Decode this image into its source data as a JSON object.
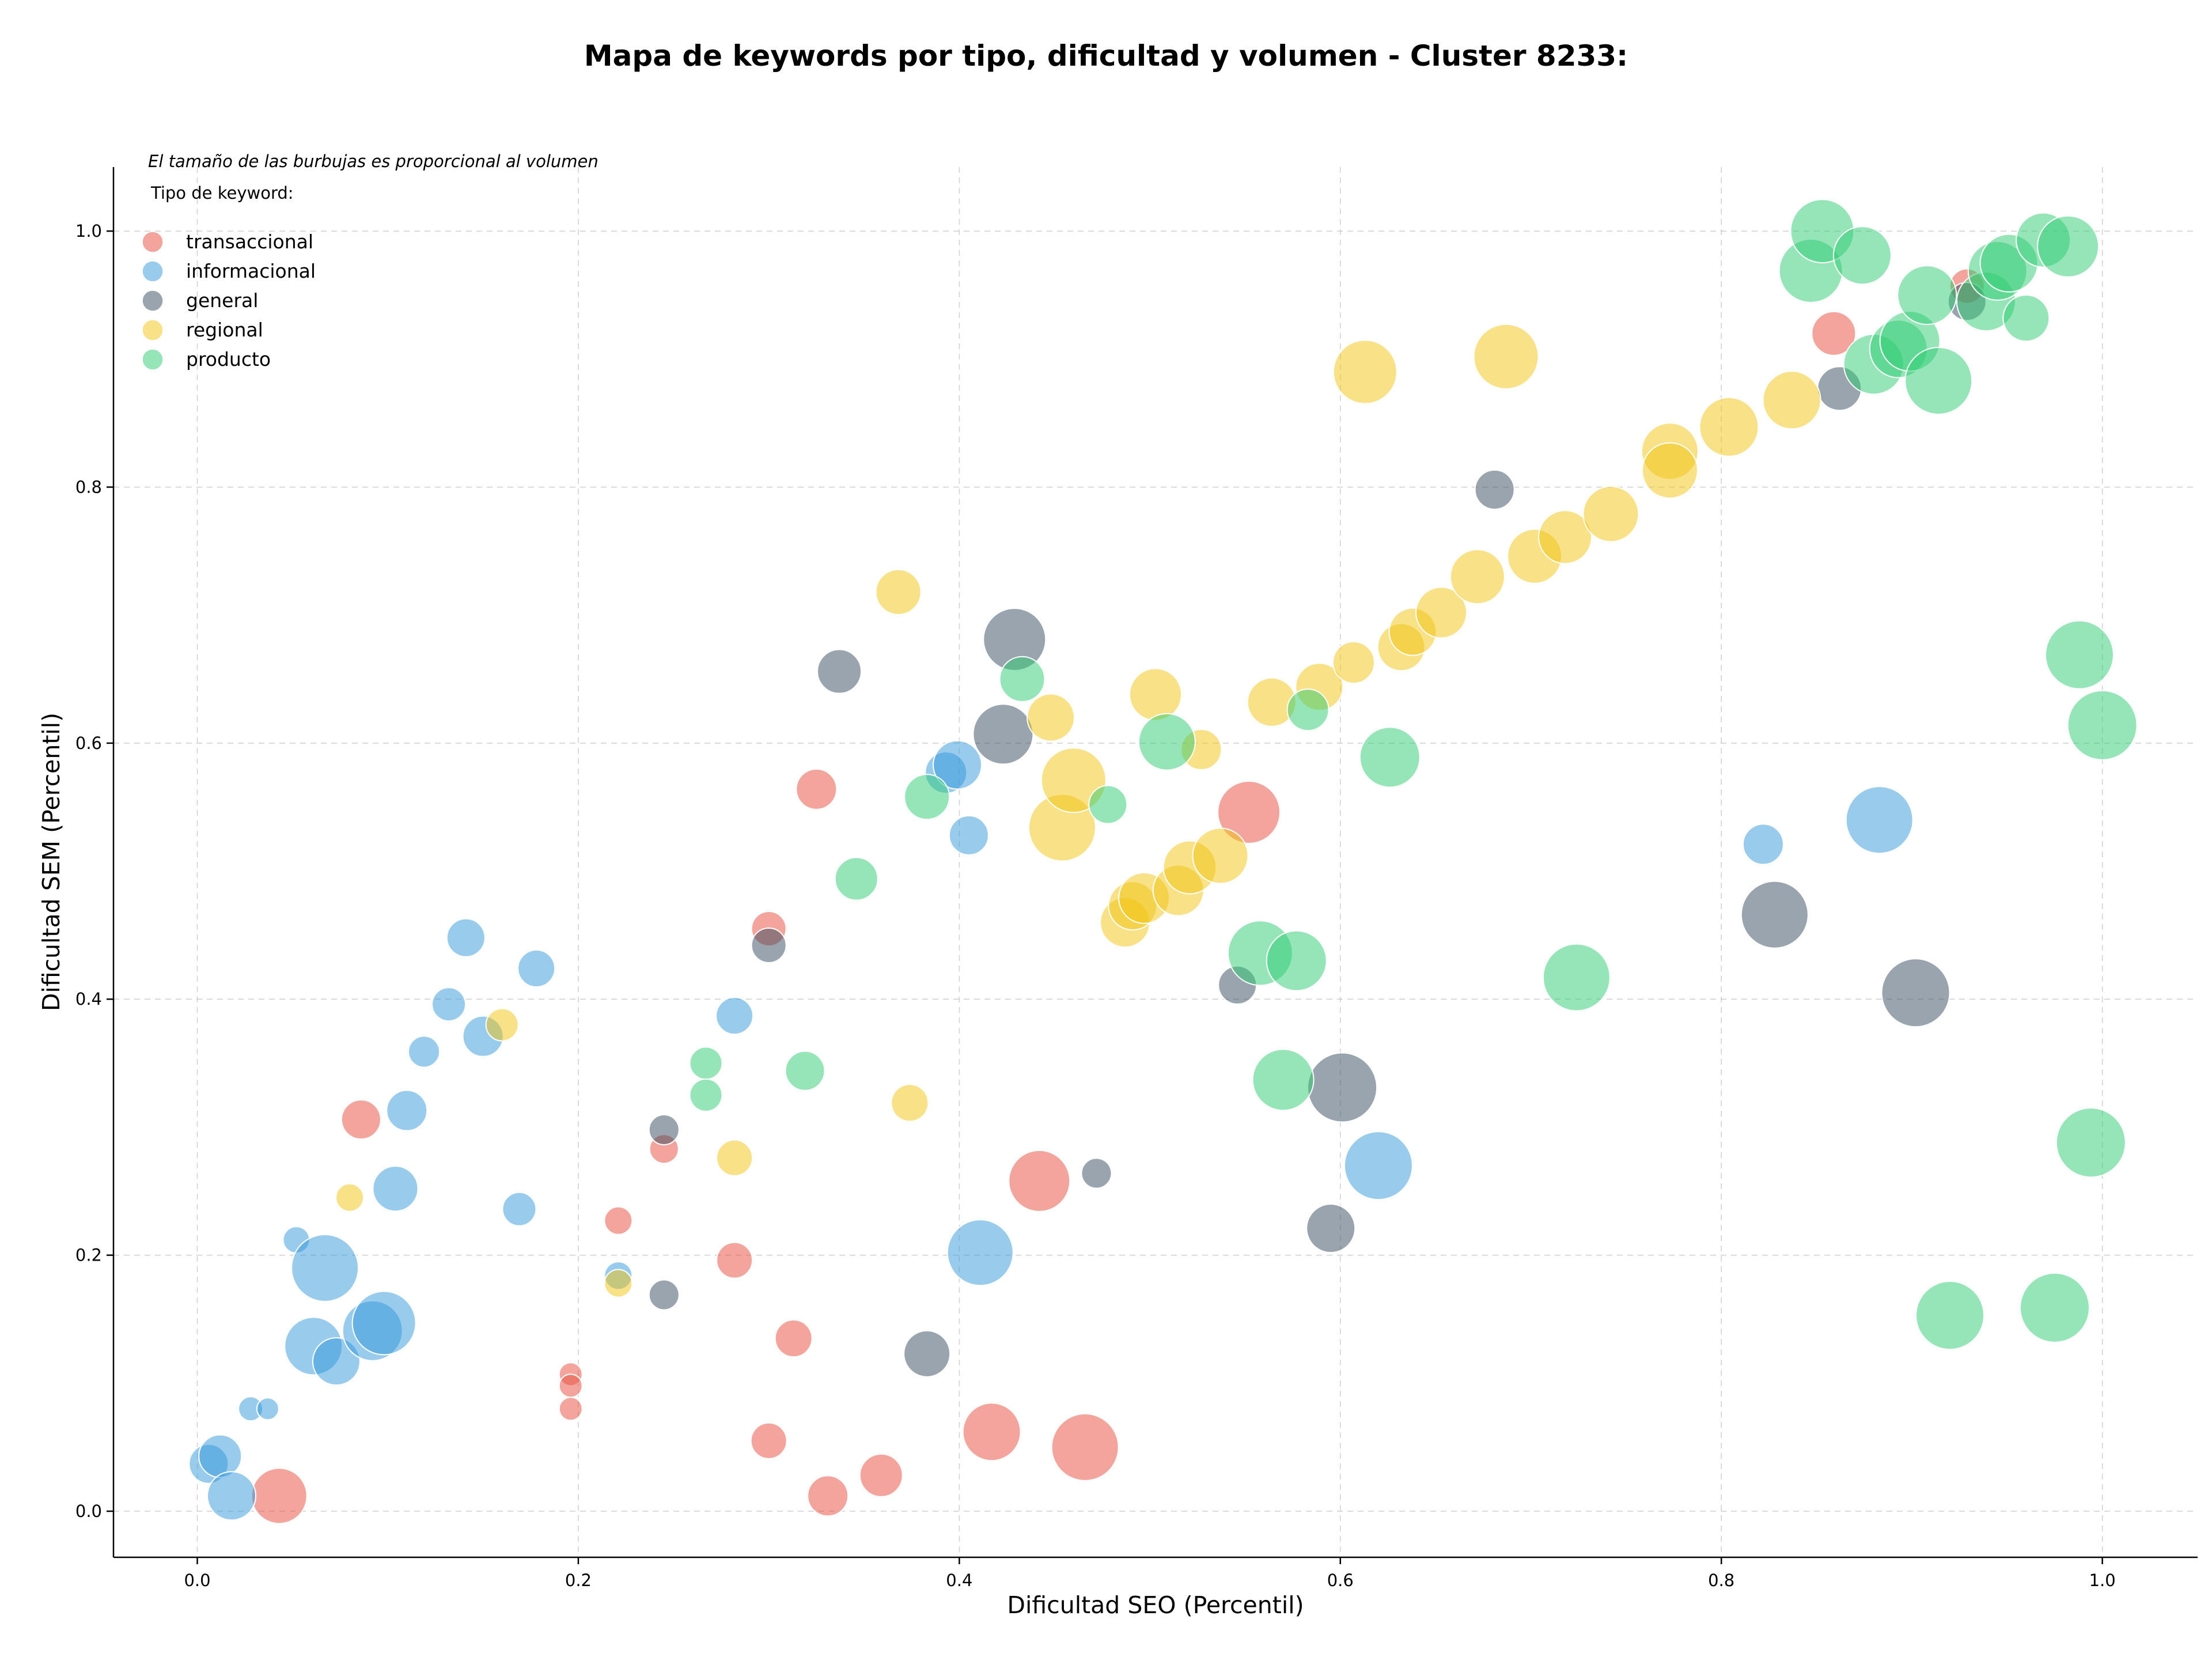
{
  "chart_data": {
    "type": "scatter",
    "title": "Mapa de keywords por tipo, dificultad y volumen - Cluster 8233:",
    "xlabel": "Dificultad SEO (Percentil)",
    "ylabel": "Dificultad SEM (Percentil)",
    "xlim": [
      -0.044,
      1.05
    ],
    "ylim": [
      -0.036,
      1.05
    ],
    "xticks": [
      "0.0",
      "0.2",
      "0.4",
      "0.6",
      "0.8",
      "1.0"
    ],
    "yticks": [
      "0.0",
      "0.2",
      "0.4",
      "0.6",
      "0.8",
      "1.0"
    ],
    "grid": true,
    "annotation": "El tamaño de las burbujas es proporcional al volumen",
    "legend_title": "Tipo de keyword:",
    "legend_position": "top-left",
    "series": [
      {
        "name": "transaccional",
        "color": "#e74c3c",
        "points": [
          {
            "x": 0.043,
            "y": 0.012,
            "size": 48
          },
          {
            "x": 0.086,
            "y": 0.306,
            "size": 34
          },
          {
            "x": 0.196,
            "y": 0.107,
            "size": 20
          },
          {
            "x": 0.196,
            "y": 0.098,
            "size": 20
          },
          {
            "x": 0.196,
            "y": 0.08,
            "size": 20
          },
          {
            "x": 0.221,
            "y": 0.227,
            "size": 24
          },
          {
            "x": 0.245,
            "y": 0.283,
            "size": 25
          },
          {
            "x": 0.282,
            "y": 0.196,
            "size": 31
          },
          {
            "x": 0.3,
            "y": 0.455,
            "size": 30
          },
          {
            "x": 0.3,
            "y": 0.055,
            "size": 31
          },
          {
            "x": 0.313,
            "y": 0.135,
            "size": 32
          },
          {
            "x": 0.325,
            "y": 0.564,
            "size": 35
          },
          {
            "x": 0.331,
            "y": 0.012,
            "size": 35
          },
          {
            "x": 0.359,
            "y": 0.028,
            "size": 37
          },
          {
            "x": 0.417,
            "y": 0.062,
            "size": 50
          },
          {
            "x": 0.442,
            "y": 0.258,
            "size": 53
          },
          {
            "x": 0.466,
            "y": 0.05,
            "size": 58
          },
          {
            "x": 0.552,
            "y": 0.546,
            "size": 54
          },
          {
            "x": 0.859,
            "y": 0.92,
            "size": 38
          },
          {
            "x": 0.929,
            "y": 0.957,
            "size": 30
          }
        ]
      },
      {
        "name": "informacional",
        "color": "#3498db",
        "points": [
          {
            "x": 0.006,
            "y": 0.037,
            "size": 34
          },
          {
            "x": 0.012,
            "y": 0.043,
            "size": 37
          },
          {
            "x": 0.018,
            "y": 0.012,
            "size": 42
          },
          {
            "x": 0.028,
            "y": 0.08,
            "size": 21
          },
          {
            "x": 0.037,
            "y": 0.08,
            "size": 19
          },
          {
            "x": 0.052,
            "y": 0.212,
            "size": 23
          },
          {
            "x": 0.061,
            "y": 0.129,
            "size": 50
          },
          {
            "x": 0.067,
            "y": 0.19,
            "size": 58
          },
          {
            "x": 0.073,
            "y": 0.117,
            "size": 41
          },
          {
            "x": 0.092,
            "y": 0.141,
            "size": 52
          },
          {
            "x": 0.098,
            "y": 0.147,
            "size": 55
          },
          {
            "x": 0.104,
            "y": 0.252,
            "size": 39
          },
          {
            "x": 0.11,
            "y": 0.313,
            "size": 35
          },
          {
            "x": 0.119,
            "y": 0.359,
            "size": 27
          },
          {
            "x": 0.132,
            "y": 0.396,
            "size": 29
          },
          {
            "x": 0.141,
            "y": 0.448,
            "size": 33
          },
          {
            "x": 0.15,
            "y": 0.371,
            "size": 35
          },
          {
            "x": 0.169,
            "y": 0.236,
            "size": 29
          },
          {
            "x": 0.178,
            "y": 0.424,
            "size": 32
          },
          {
            "x": 0.221,
            "y": 0.184,
            "size": 24
          },
          {
            "x": 0.282,
            "y": 0.387,
            "size": 32
          },
          {
            "x": 0.393,
            "y": 0.577,
            "size": 36
          },
          {
            "x": 0.399,
            "y": 0.583,
            "size": 42
          },
          {
            "x": 0.405,
            "y": 0.528,
            "size": 34
          },
          {
            "x": 0.411,
            "y": 0.202,
            "size": 57
          },
          {
            "x": 0.62,
            "y": 0.27,
            "size": 59
          },
          {
            "x": 0.822,
            "y": 0.521,
            "size": 35
          },
          {
            "x": 0.883,
            "y": 0.54,
            "size": 58
          }
        ]
      },
      {
        "name": "general",
        "color": "#34495e",
        "points": [
          {
            "x": 0.245,
            "y": 0.298,
            "size": 26
          },
          {
            "x": 0.245,
            "y": 0.169,
            "size": 26
          },
          {
            "x": 0.3,
            "y": 0.442,
            "size": 30
          },
          {
            "x": 0.337,
            "y": 0.656,
            "size": 38
          },
          {
            "x": 0.383,
            "y": 0.123,
            "size": 40
          },
          {
            "x": 0.423,
            "y": 0.607,
            "size": 52
          },
          {
            "x": 0.429,
            "y": 0.681,
            "size": 54
          },
          {
            "x": 0.472,
            "y": 0.264,
            "size": 26
          },
          {
            "x": 0.546,
            "y": 0.411,
            "size": 33
          },
          {
            "x": 0.595,
            "y": 0.221,
            "size": 42
          },
          {
            "x": 0.601,
            "y": 0.331,
            "size": 60
          },
          {
            "x": 0.681,
            "y": 0.798,
            "size": 34
          },
          {
            "x": 0.828,
            "y": 0.466,
            "size": 58
          },
          {
            "x": 0.862,
            "y": 0.877,
            "size": 38
          },
          {
            "x": 0.902,
            "y": 0.405,
            "size": 59
          },
          {
            "x": 0.929,
            "y": 0.945,
            "size": 33
          }
        ]
      },
      {
        "name": "regional",
        "color": "#f1c40f",
        "points": [
          {
            "x": 0.08,
            "y": 0.245,
            "size": 24
          },
          {
            "x": 0.16,
            "y": 0.38,
            "size": 28
          },
          {
            "x": 0.221,
            "y": 0.178,
            "size": 24
          },
          {
            "x": 0.282,
            "y": 0.276,
            "size": 31
          },
          {
            "x": 0.368,
            "y": 0.718,
            "size": 39
          },
          {
            "x": 0.374,
            "y": 0.319,
            "size": 32
          },
          {
            "x": 0.448,
            "y": 0.62,
            "size": 41
          },
          {
            "x": 0.454,
            "y": 0.534,
            "size": 58
          },
          {
            "x": 0.46,
            "y": 0.571,
            "size": 56
          },
          {
            "x": 0.487,
            "y": 0.46,
            "size": 43
          },
          {
            "x": 0.491,
            "y": 0.473,
            "size": 42
          },
          {
            "x": 0.497,
            "y": 0.479,
            "size": 44
          },
          {
            "x": 0.503,
            "y": 0.638,
            "size": 45
          },
          {
            "x": 0.515,
            "y": 0.485,
            "size": 44
          },
          {
            "x": 0.521,
            "y": 0.503,
            "size": 46
          },
          {
            "x": 0.527,
            "y": 0.595,
            "size": 35
          },
          {
            "x": 0.537,
            "y": 0.512,
            "size": 48
          },
          {
            "x": 0.564,
            "y": 0.632,
            "size": 42
          },
          {
            "x": 0.589,
            "y": 0.644,
            "size": 41
          },
          {
            "x": 0.607,
            "y": 0.663,
            "size": 36
          },
          {
            "x": 0.613,
            "y": 0.89,
            "size": 55
          },
          {
            "x": 0.632,
            "y": 0.675,
            "size": 41
          },
          {
            "x": 0.638,
            "y": 0.687,
            "size": 41
          },
          {
            "x": 0.653,
            "y": 0.702,
            "size": 44
          },
          {
            "x": 0.672,
            "y": 0.73,
            "size": 47
          },
          {
            "x": 0.687,
            "y": 0.902,
            "size": 56
          },
          {
            "x": 0.702,
            "y": 0.746,
            "size": 47
          },
          {
            "x": 0.718,
            "y": 0.761,
            "size": 46
          },
          {
            "x": 0.742,
            "y": 0.779,
            "size": 48
          },
          {
            "x": 0.773,
            "y": 0.828,
            "size": 49
          },
          {
            "x": 0.773,
            "y": 0.813,
            "size": 48
          },
          {
            "x": 0.804,
            "y": 0.847,
            "size": 51
          },
          {
            "x": 0.837,
            "y": 0.868,
            "size": 50
          }
        ]
      },
      {
        "name": "producto",
        "color": "#2ecc71",
        "points": [
          {
            "x": 0.267,
            "y": 0.35,
            "size": 28
          },
          {
            "x": 0.267,
            "y": 0.325,
            "size": 28
          },
          {
            "x": 0.319,
            "y": 0.344,
            "size": 34
          },
          {
            "x": 0.346,
            "y": 0.494,
            "size": 37
          },
          {
            "x": 0.383,
            "y": 0.558,
            "size": 39
          },
          {
            "x": 0.433,
            "y": 0.65,
            "size": 39
          },
          {
            "x": 0.478,
            "y": 0.552,
            "size": 33
          },
          {
            "x": 0.509,
            "y": 0.601,
            "size": 49
          },
          {
            "x": 0.558,
            "y": 0.436,
            "size": 56
          },
          {
            "x": 0.57,
            "y": 0.337,
            "size": 53
          },
          {
            "x": 0.577,
            "y": 0.43,
            "size": 52
          },
          {
            "x": 0.583,
            "y": 0.626,
            "size": 36
          },
          {
            "x": 0.626,
            "y": 0.589,
            "size": 52
          },
          {
            "x": 0.724,
            "y": 0.417,
            "size": 58
          },
          {
            "x": 0.847,
            "y": 0.969,
            "size": 55
          },
          {
            "x": 0.853,
            "y": 1.0,
            "size": 55
          },
          {
            "x": 0.874,
            "y": 0.981,
            "size": 50
          },
          {
            "x": 0.88,
            "y": 0.896,
            "size": 52
          },
          {
            "x": 0.893,
            "y": 0.908,
            "size": 50
          },
          {
            "x": 0.899,
            "y": 0.914,
            "size": 52
          },
          {
            "x": 0.908,
            "y": 0.95,
            "size": 51
          },
          {
            "x": 0.914,
            "y": 0.883,
            "size": 58
          },
          {
            "x": 0.92,
            "y": 0.153,
            "size": 59
          },
          {
            "x": 0.939,
            "y": 0.945,
            "size": 51
          },
          {
            "x": 0.945,
            "y": 0.969,
            "size": 51
          },
          {
            "x": 0.951,
            "y": 0.975,
            "size": 50
          },
          {
            "x": 0.96,
            "y": 0.932,
            "size": 40
          },
          {
            "x": 0.969,
            "y": 0.993,
            "size": 47
          },
          {
            "x": 0.975,
            "y": 0.159,
            "size": 60
          },
          {
            "x": 0.982,
            "y": 0.988,
            "size": 53
          },
          {
            "x": 0.988,
            "y": 0.669,
            "size": 59
          },
          {
            "x": 0.994,
            "y": 0.288,
            "size": 60
          },
          {
            "x": 1.0,
            "y": 0.614,
            "size": 60
          }
        ]
      }
    ]
  }
}
